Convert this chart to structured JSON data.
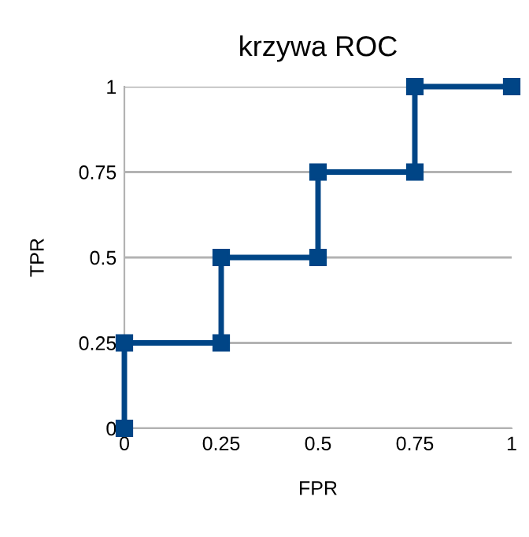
{
  "chart_data": {
    "type": "line",
    "title": "krzywa ROC",
    "xlabel": "FPR",
    "ylabel": "TPR",
    "series": [
      {
        "color": "#004586",
        "x": [
          0,
          0,
          0.25,
          0.25,
          0.5,
          0.5,
          0.75,
          0.75,
          1
        ],
        "values": [
          0,
          0.25,
          0.25,
          0.5,
          0.5,
          0.75,
          0.75,
          1,
          1
        ]
      }
    ],
    "xlim": [
      0,
      1
    ],
    "ylim": [
      0,
      1
    ],
    "xticks": [
      0,
      0.25,
      0.5,
      0.75,
      1
    ],
    "yticks": [
      0,
      0.25,
      0.5,
      0.75,
      1
    ],
    "grid": "y",
    "marker": "square",
    "line_style": "solid"
  }
}
